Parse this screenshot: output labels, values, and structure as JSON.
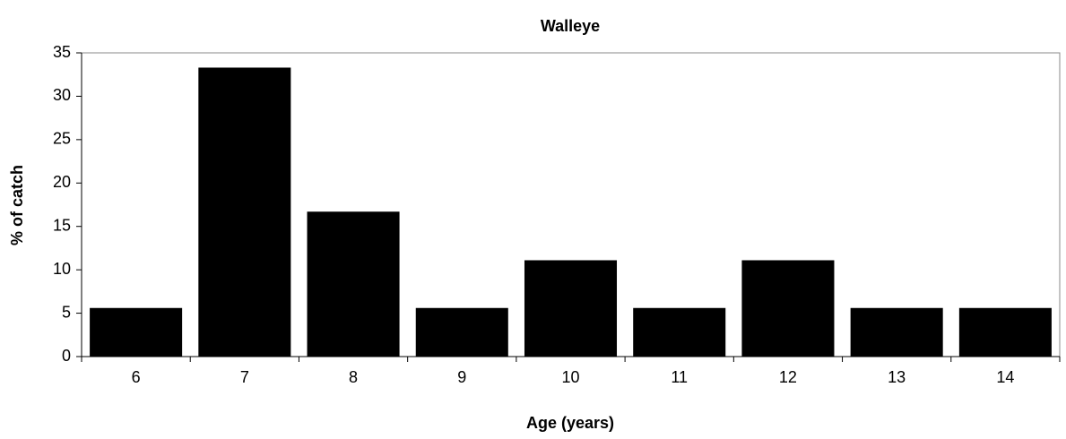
{
  "chart_data": {
    "type": "bar",
    "title": "Walleye",
    "x_label": "Age (years)",
    "y_label": "% of catch",
    "categories": [
      "6",
      "7",
      "8",
      "9",
      "10",
      "11",
      "12",
      "13",
      "14"
    ],
    "values": [
      5.6,
      33.3,
      16.7,
      5.6,
      11.1,
      5.6,
      11.1,
      5.6,
      5.6
    ],
    "color": "#000000",
    "ylim": [
      0,
      35
    ],
    "yticks": [
      0,
      5,
      10,
      15,
      20,
      25,
      30,
      35
    ],
    "grid": false
  }
}
